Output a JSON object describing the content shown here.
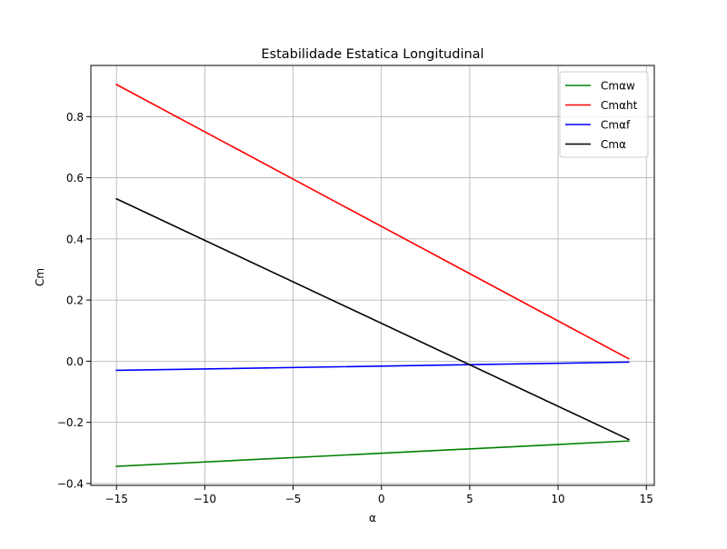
{
  "chart_data": {
    "type": "line",
    "title": "Estabilidade Estatica Longitudinal",
    "xlabel": "α",
    "ylabel": "Cm",
    "xlim": [
      -16.45,
      15.45
    ],
    "ylim": [
      -0.4062,
      0.9674
    ],
    "xticks": [
      -15,
      -10,
      -5,
      0,
      5,
      10,
      15
    ],
    "xtick_labels": [
      "−15",
      "−10",
      "−5",
      "0",
      "5",
      "10",
      "15"
    ],
    "yticks": [
      -0.4,
      -0.2,
      0.0,
      0.2,
      0.4,
      0.6,
      0.8
    ],
    "ytick_labels": [
      "−0.4",
      "−0.2",
      "0.0",
      "0.2",
      "0.4",
      "0.6",
      "0.8"
    ],
    "grid": true,
    "legend_position": "upper-right",
    "series": [
      {
        "name": "Cmαw",
        "color": "#008000",
        "x": [
          -15,
          14
        ],
        "y": [
          -0.344,
          -0.261
        ]
      },
      {
        "name": "Cmαht",
        "color": "#ff0000",
        "x": [
          -15,
          14
        ],
        "y": [
          0.905,
          0.008
        ]
      },
      {
        "name": "Cmαf",
        "color": "#0000ff",
        "x": [
          -15,
          14
        ],
        "y": [
          -0.03,
          -0.003
        ]
      },
      {
        "name": "Cmα",
        "color": "#000000",
        "x": [
          -15,
          14
        ],
        "y": [
          0.531,
          -0.256
        ]
      }
    ]
  }
}
